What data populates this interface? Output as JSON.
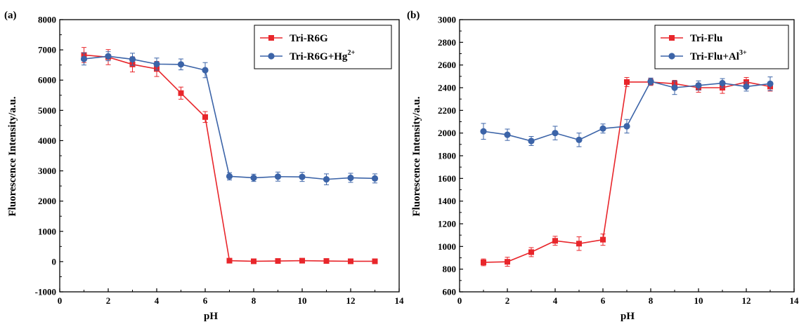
{
  "chart_data": [
    {
      "panel_label": "(a)",
      "type": "line",
      "xlabel": "pH",
      "ylabel": "Fluorescence Intensity/a.u.",
      "xlim": [
        0,
        14
      ],
      "ylim": [
        -1000,
        8000
      ],
      "xticks": [
        0,
        2,
        4,
        6,
        8,
        10,
        12,
        14
      ],
      "yticks": [
        -1000,
        0,
        1000,
        2000,
        3000,
        4000,
        5000,
        6000,
        7000,
        8000
      ],
      "grid": false,
      "legend_position": "top-right",
      "x": [
        1,
        2,
        3,
        4,
        5,
        6,
        7,
        8,
        9,
        10,
        11,
        12,
        13
      ],
      "series": [
        {
          "name": "Tri-R6G",
          "legend_main": "Tri-R6G",
          "legend_sup": "",
          "color": "#e8262b",
          "marker": "square",
          "values": [
            6830,
            6760,
            6520,
            6370,
            5570,
            4780,
            30,
            10,
            20,
            30,
            20,
            10,
            10
          ],
          "errors": [
            250,
            250,
            250,
            250,
            200,
            180,
            30,
            20,
            20,
            20,
            20,
            20,
            20
          ]
        },
        {
          "name": "Tri-R6G+Hg2+",
          "legend_main": "Tri-R6G+Hg",
          "legend_sup": "2+",
          "color": "#3c64a8",
          "marker": "circle",
          "values": [
            6700,
            6790,
            6690,
            6530,
            6520,
            6330,
            2820,
            2770,
            2810,
            2800,
            2720,
            2770,
            2750
          ],
          "errors": [
            200,
            150,
            200,
            200,
            180,
            250,
            120,
            120,
            150,
            150,
            180,
            150,
            150
          ]
        }
      ]
    },
    {
      "panel_label": "(b)",
      "type": "line",
      "xlabel": "pH",
      "ylabel": "Fluorescence Intensity/a.u.",
      "xlim": [
        0,
        14
      ],
      "ylim": [
        600,
        3000
      ],
      "xticks": [
        0,
        2,
        4,
        6,
        8,
        10,
        12,
        14
      ],
      "yticks": [
        600,
        800,
        1000,
        1200,
        1400,
        1600,
        1800,
        2000,
        2200,
        2400,
        2600,
        2800,
        3000
      ],
      "grid": false,
      "legend_position": "top-right",
      "x": [
        1,
        2,
        3,
        4,
        5,
        6,
        7,
        8,
        9,
        10,
        11,
        12,
        13
      ],
      "series": [
        {
          "name": "Tri-Flu",
          "legend_main": "Tri-Flu",
          "legend_sup": "",
          "color": "#e8262b",
          "marker": "square",
          "values": [
            860,
            865,
            950,
            1050,
            1025,
            1060,
            2450,
            2450,
            2435,
            2400,
            2400,
            2450,
            2410
          ],
          "errors": [
            30,
            40,
            40,
            40,
            60,
            50,
            40,
            30,
            30,
            40,
            50,
            40,
            40
          ]
        },
        {
          "name": "Tri-Flu+Al3+",
          "legend_main": "Tri-Flu+Al",
          "legend_sup": "3+",
          "color": "#3c64a8",
          "marker": "circle",
          "values": [
            2015,
            1985,
            1930,
            2000,
            1940,
            2040,
            2060,
            2455,
            2400,
            2420,
            2440,
            2410,
            2435
          ],
          "errors": [
            70,
            50,
            40,
            60,
            60,
            40,
            60,
            30,
            60,
            40,
            40,
            40,
            60
          ]
        }
      ]
    }
  ]
}
